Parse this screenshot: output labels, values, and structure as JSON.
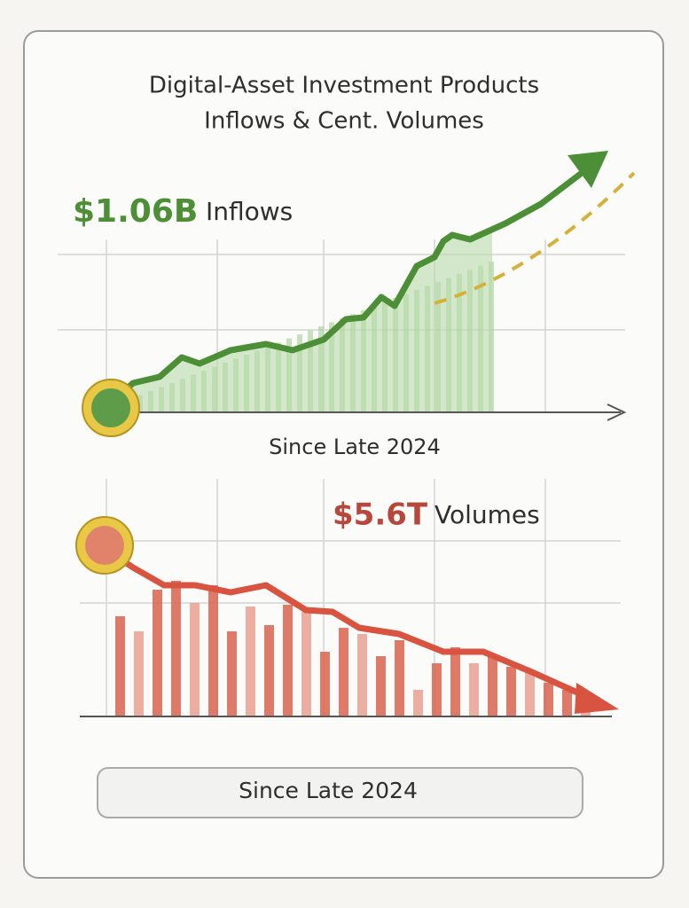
{
  "header": {
    "title_line1": "Digital-Asset Investment Products",
    "title_line2": "Inflows & Cent. Volumes"
  },
  "inflows": {
    "amount": "$1.06B",
    "label": "Inflows",
    "caption": "Since Late 2024"
  },
  "volumes": {
    "amount": "$5.6T",
    "label": "Volumes",
    "caption": "Since Late 2024"
  }
}
